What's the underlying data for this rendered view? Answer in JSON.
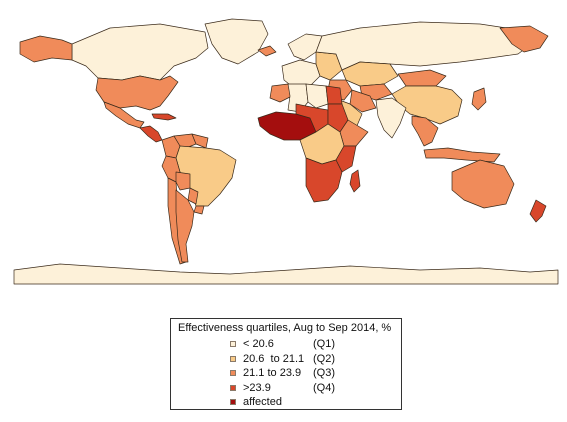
{
  "legend": {
    "title": "Effectiveness quartiles, Aug to Sep 2014, %",
    "items": [
      {
        "label": "< 20.6",
        "code": "(Q1)",
        "color": "#fdf1d9"
      },
      {
        "label": "20.6  to 21.1",
        "code": "(Q2)",
        "color": "#f9cb88"
      },
      {
        "label": "21.1 to 23.9",
        "code": "(Q3)",
        "color": "#f08b5a"
      },
      {
        "label": ">23.9",
        "code": "(Q4)",
        "color": "#d8472b"
      },
      {
        "label": "affected",
        "code": "",
        "color": "#a40e0e"
      }
    ]
  },
  "map": {
    "border_color": "#3a2a1a",
    "regions": [
      {
        "name": "canada",
        "quartile": "Q1"
      },
      {
        "name": "alaska",
        "quartile": "Q3"
      },
      {
        "name": "greenland",
        "quartile": "Q1"
      },
      {
        "name": "usa",
        "quartile": "Q3"
      },
      {
        "name": "mexico",
        "quartile": "Q3"
      },
      {
        "name": "central-america",
        "quartile": "Q4"
      },
      {
        "name": "caribbean",
        "quartile": "Q4"
      },
      {
        "name": "colombia",
        "quartile": "Q3"
      },
      {
        "name": "venezuela",
        "quartile": "Q3"
      },
      {
        "name": "guianas",
        "quartile": "Q3"
      },
      {
        "name": "brazil",
        "quartile": "Q2"
      },
      {
        "name": "peru",
        "quartile": "Q3"
      },
      {
        "name": "bolivia",
        "quartile": "Q3"
      },
      {
        "name": "paraguay",
        "quartile": "Q3"
      },
      {
        "name": "chile",
        "quartile": "Q3"
      },
      {
        "name": "argentina",
        "quartile": "Q3"
      },
      {
        "name": "uruguay",
        "quartile": "Q3"
      },
      {
        "name": "iceland",
        "quartile": "Q3"
      },
      {
        "name": "scandinavia",
        "quartile": "Q1"
      },
      {
        "name": "western-europe",
        "quartile": "Q1"
      },
      {
        "name": "eastern-europe",
        "quartile": "Q2"
      },
      {
        "name": "russia",
        "quartile": "Q1"
      },
      {
        "name": "kamchatka",
        "quartile": "Q3"
      },
      {
        "name": "kazakhstan",
        "quartile": "Q2"
      },
      {
        "name": "central-asia",
        "quartile": "Q3"
      },
      {
        "name": "mongolia",
        "quartile": "Q3"
      },
      {
        "name": "china",
        "quartile": "Q2"
      },
      {
        "name": "middle-east",
        "quartile": "Q3"
      },
      {
        "name": "arabia",
        "quartile": "Q2"
      },
      {
        "name": "iran",
        "quartile": "Q3"
      },
      {
        "name": "india",
        "quartile": "Q1"
      },
      {
        "name": "southeast-asia",
        "quartile": "Q3"
      },
      {
        "name": "japan",
        "quartile": "Q3"
      },
      {
        "name": "indonesia",
        "quartile": "Q3"
      },
      {
        "name": "australia",
        "quartile": "Q3"
      },
      {
        "name": "new-zealand",
        "quartile": "Q4"
      },
      {
        "name": "morocco",
        "quartile": "Q3"
      },
      {
        "name": "algeria",
        "quartile": "Q1"
      },
      {
        "name": "libya",
        "quartile": "Q1"
      },
      {
        "name": "egypt",
        "quartile": "Q4"
      },
      {
        "name": "west-africa",
        "quartile": "affected"
      },
      {
        "name": "sahel",
        "quartile": "Q4"
      },
      {
        "name": "sudan",
        "quartile": "Q4"
      },
      {
        "name": "horn-of-africa",
        "quartile": "Q3"
      },
      {
        "name": "central-africa",
        "quartile": "Q2"
      },
      {
        "name": "east-africa",
        "quartile": "Q4"
      },
      {
        "name": "southern-africa",
        "quartile": "Q4"
      },
      {
        "name": "madagascar",
        "quartile": "Q4"
      },
      {
        "name": "antarctica",
        "quartile": "Q1"
      }
    ]
  }
}
